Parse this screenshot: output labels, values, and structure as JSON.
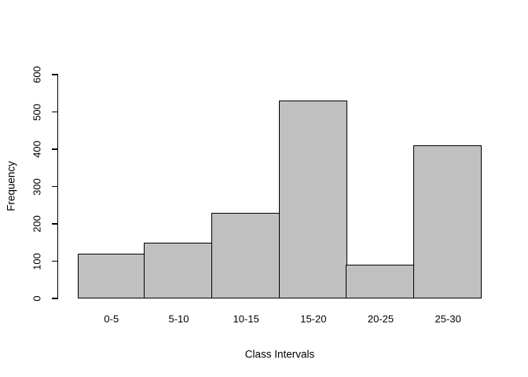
{
  "chart_data": {
    "type": "bar",
    "title": "",
    "xlabel": "Class Intervals",
    "ylabel": "Frequency",
    "categories": [
      "0-5",
      "5-10",
      "10-15",
      "15-20",
      "20-25",
      "25-30"
    ],
    "values": [
      120,
      150,
      230,
      530,
      90,
      410
    ],
    "yticks": [
      0,
      100,
      200,
      300,
      400,
      500,
      600
    ],
    "ylim": [
      0,
      600
    ],
    "grid": false,
    "legend": "none",
    "colors": {
      "background": "#ffffff",
      "bar_fill": "#c0c0c0",
      "bar_border": "#000000",
      "text": "#000000"
    }
  }
}
